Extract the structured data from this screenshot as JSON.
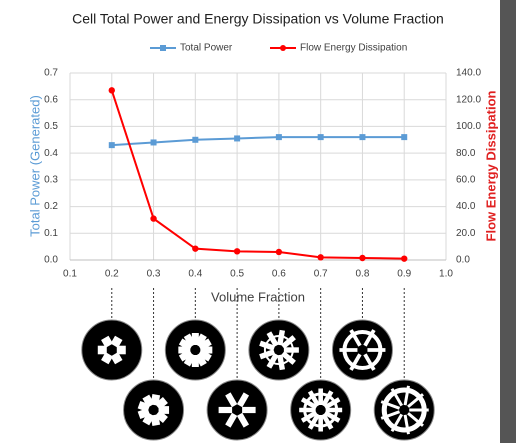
{
  "chart_data": {
    "type": "line",
    "title": "Cell Total Power and Energy Dissipation vs Volume Fraction",
    "x_label": "Volume Fraction",
    "y_label": "Total Power (Generated)",
    "y2_label": "Flow Energy Dissipation",
    "x": [
      0.2,
      0.3,
      0.4,
      0.5,
      0.6,
      0.7,
      0.8,
      0.9
    ],
    "series": [
      {
        "name": "Total Power",
        "color": "#5b9bd5",
        "values": [
          0.43,
          0.44,
          0.45,
          0.455,
          0.46,
          0.46,
          0.46,
          0.46
        ]
      },
      {
        "name": "Flow Energy Dissipation",
        "color": "#ff0000",
        "axis": "y2",
        "values": [
          127,
          31,
          8.5,
          6.5,
          6,
          2,
          1.5,
          1
        ]
      }
    ],
    "xlim": [
      0.1,
      1.0
    ],
    "xticks": [
      0.1,
      0.2,
      0.3,
      0.4,
      0.5,
      0.6,
      0.7,
      0.8,
      0.9,
      {
        "value": 1.0,
        "label": "1.0"
      }
    ],
    "ylim": [
      0,
      0.7
    ],
    "yticks": [
      {
        "value": 0,
        "label": "0.0"
      },
      0.1,
      0.2,
      0.3,
      0.4,
      0.5,
      0.6,
      0.7
    ],
    "y2lim": [
      0,
      140
    ],
    "y2ticks": [
      {
        "value": 0,
        "label": "0.0"
      },
      {
        "value": 20,
        "label": "20.0"
      },
      {
        "value": 40,
        "label": "40.0"
      },
      {
        "value": 60,
        "label": "60.0"
      },
      {
        "value": 80,
        "label": "80.0"
      },
      {
        "value": 100,
        "label": "100.0"
      },
      {
        "value": 120,
        "label": "120.0"
      },
      {
        "value": 140,
        "label": "140.0"
      }
    ],
    "grid": true,
    "legend": "top"
  }
}
